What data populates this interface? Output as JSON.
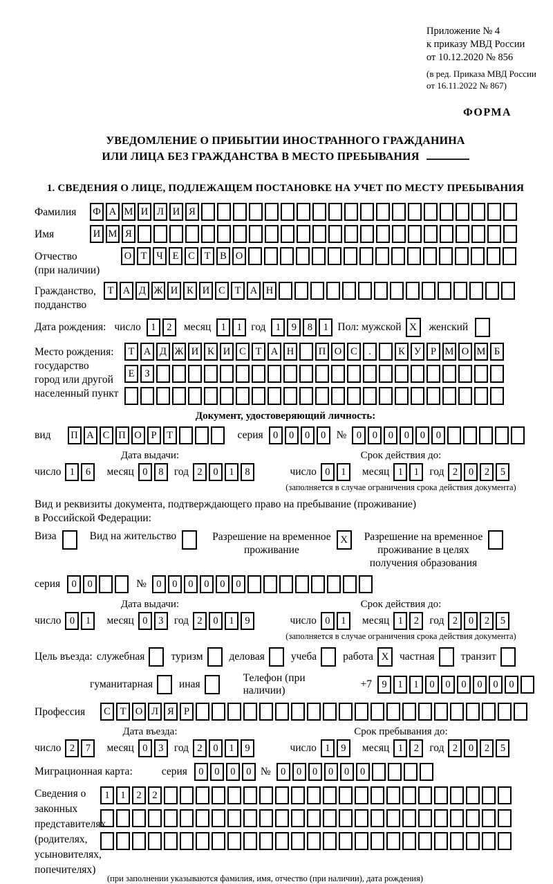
{
  "words": {
    "day": "число",
    "month": "месяц",
    "year": "год",
    "series": "серия",
    "number": "№",
    "vid": "вид"
  },
  "header": {
    "annex_lines": [
      "Приложение № 4",
      "к приказу МВД России",
      "от 10.12.2020 № 856"
    ],
    "edition_lines": [
      "(в ред. Приказа МВД России",
      "от 16.11.2022 № 867)"
    ],
    "forma": "ФОРМА"
  },
  "title": {
    "line1": "УВЕДОМЛЕНИЕ О ПРИБЫТИИ ИНОСТРАННОГО ГРАЖДАНИНА",
    "line2": "ИЛИ ЛИЦА БЕЗ ГРАЖДАНСТВА В МЕСТО ПРЕБЫВАНИЯ"
  },
  "section1": {
    "heading": "1. СВЕДЕНИЯ О ЛИЦЕ, ПОДЛЕЖАЩЕМ ПОСТАНОВКЕ НА УЧЕТ ПО МЕСТУ ПРЕБЫВАНИЯ",
    "surname": {
      "label": "Фамилия",
      "cells": {
        "value": "ФАМИЛИЯ",
        "len": 27
      }
    },
    "given_name": {
      "label": "Имя",
      "cells": {
        "value": "ИМЯ",
        "len": 27
      }
    },
    "patronymic": {
      "label1": "Отчество",
      "label2": "(при наличии)",
      "cells": {
        "value": "ОТЧЕСТВО",
        "len": 25
      }
    },
    "citizenship": {
      "label1": "Гражданство,",
      "label2": "подданство",
      "cells": {
        "value": "ТАДЖИКИСТАН",
        "len": 26
      }
    },
    "birth_date": {
      "label": "Дата рождения:",
      "day": {
        "value": "12",
        "len": 2
      },
      "month": {
        "value": "11",
        "len": 2
      },
      "year": {
        "value": "1981",
        "len": 4
      },
      "sex_male_label": "Пол: мужской",
      "male_checked": "X",
      "sex_female_label": "женский",
      "female_checked": ""
    },
    "birth_place": {
      "label1": "Место рождения:",
      "label2": "государство",
      "label3": "город или другой",
      "label4": "населенный пункт",
      "row1": {
        "value": "ТАДЖИКИСТАН ПОС. КУРМОМБ",
        "len": 24
      },
      "row2": {
        "value": "ЕЗ",
        "len": 24
      },
      "row3": {
        "value": "",
        "len": 24
      }
    },
    "identity_doc": {
      "heading": "Документ, удостоверяющий личность:",
      "type": {
        "value": "ПАСПОРТ",
        "len": 10
      },
      "series": {
        "value": "0000",
        "len": 4
      },
      "number": {
        "value": "000000",
        "len": 11
      },
      "issue": {
        "heading": "Дата выдачи:",
        "day": {
          "value": "16",
          "len": 2
        },
        "month": {
          "value": "08",
          "len": 2
        },
        "year": {
          "value": "2018",
          "len": 4
        }
      },
      "expiry": {
        "heading": "Срок действия до:",
        "day": {
          "value": "01",
          "len": 2
        },
        "month": {
          "value": "11",
          "len": 2
        },
        "year": {
          "value": "2025",
          "len": 4
        }
      },
      "note": "(заполняется в случае ограничения срока действия документа)"
    },
    "residence_doc": {
      "intro1": "Вид и реквизиты документа, подтверждающего право на пребывание (проживание)",
      "intro2": "в Российской Федерации:",
      "options": [
        {
          "label": "Виза",
          "checked": ""
        },
        {
          "label": "Вид на жительство",
          "checked": ""
        },
        {
          "line1": "Разрешение на временное",
          "line2": "проживание",
          "checked": "X"
        },
        {
          "line1": "Разрешение на временное",
          "line2": "проживание в целях",
          "line3": "получения образования",
          "checked": ""
        }
      ],
      "series": {
        "value": "00",
        "len": 4
      },
      "number": {
        "value": "000000",
        "len": 14
      },
      "issue": {
        "heading": "Дата выдачи:",
        "day": {
          "value": "01",
          "len": 2
        },
        "month": {
          "value": "03",
          "len": 2
        },
        "year": {
          "value": "2019",
          "len": 4
        }
      },
      "expiry": {
        "heading": "Срок действия до:",
        "day": {
          "value": "01",
          "len": 2
        },
        "month": {
          "value": "12",
          "len": 2
        },
        "year": {
          "value": "2025",
          "len": 4
        }
      },
      "note": "(заполняется в случае ограничения срока действия документа)"
    },
    "purpose": {
      "label": "Цель въезда:",
      "options": [
        {
          "label": "служебная",
          "checked": ""
        },
        {
          "label": "туризм",
          "checked": ""
        },
        {
          "label": "деловая",
          "checked": ""
        },
        {
          "label": "учеба",
          "checked": ""
        },
        {
          "label": "работа",
          "checked": "X"
        },
        {
          "label": "частная",
          "checked": ""
        },
        {
          "label": "транзит",
          "checked": ""
        }
      ],
      "options2": [
        {
          "label": "гуманитарная",
          "checked": ""
        },
        {
          "label": "иная",
          "checked": ""
        }
      ],
      "phone_label": "Телефон (при наличии)",
      "phone_prefix": "+7",
      "phone": {
        "value": "911000000",
        "len": 10
      }
    },
    "profession": {
      "label": "Профессия",
      "cells": {
        "value": "СТОЛЯР",
        "len": 27
      }
    },
    "entry": {
      "entry_date": {
        "heading": "Дата въезда:",
        "day": {
          "value": "27",
          "len": 2
        },
        "month": {
          "value": "03",
          "len": 2
        },
        "year": {
          "value": "2019",
          "len": 4
        }
      },
      "stay_until": {
        "heading": "Срок пребывания до:",
        "day": {
          "value": "19",
          "len": 2
        },
        "month": {
          "value": "12",
          "len": 2
        },
        "year": {
          "value": "2025",
          "len": 4
        }
      }
    },
    "migration_card": {
      "label": "Миграционная карта:",
      "series": {
        "value": "0000",
        "len": 4
      },
      "number": {
        "value": "000000",
        "len": 10
      }
    },
    "representatives": {
      "label1": "Сведения о",
      "label2": "законных",
      "label3": "представителях",
      "label4": "(родителях,",
      "label5": "усыновителях,",
      "label6": "попечителях)",
      "row1": {
        "value": "1122",
        "len": 26
      },
      "row2": {
        "value": "",
        "len": 26
      },
      "row3": {
        "value": "",
        "len": 26
      },
      "note": "(при заполнении указываются фамилия, имя, отчество (при наличии), дата рождения)"
    }
  }
}
